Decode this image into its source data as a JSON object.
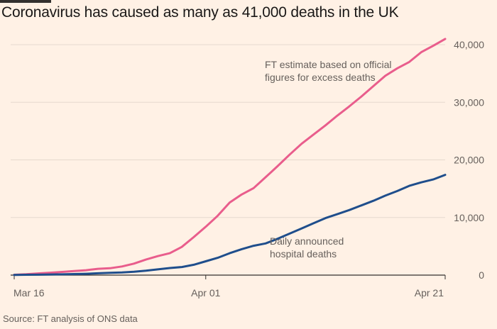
{
  "title": "Coronavirus has caused as many as 41,000 deaths in the UK",
  "source": "Source: FT analysis of ONS data",
  "chart_data": {
    "type": "line",
    "title": "Coronavirus has caused as many as 41,000 deaths in the UK",
    "xlabel": "",
    "ylabel": "",
    "x_ticks": [
      "Mar 16",
      "Apr 01",
      "Apr 21"
    ],
    "y_ticks": [
      "0",
      "10,000",
      "20,000",
      "30,000",
      "40,000"
    ],
    "ylim": [
      0,
      42000
    ],
    "grid": true,
    "legend": "none (direct labels)",
    "x": [
      "Mar 16",
      "Mar 17",
      "Mar 18",
      "Mar 19",
      "Mar 20",
      "Mar 21",
      "Mar 22",
      "Mar 23",
      "Mar 24",
      "Mar 25",
      "Mar 26",
      "Mar 27",
      "Mar 28",
      "Mar 29",
      "Mar 30",
      "Mar 31",
      "Apr 01",
      "Apr 02",
      "Apr 03",
      "Apr 04",
      "Apr 05",
      "Apr 06",
      "Apr 07",
      "Apr 08",
      "Apr 09",
      "Apr 10",
      "Apr 11",
      "Apr 12",
      "Apr 13",
      "Apr 14",
      "Apr 15",
      "Apr 16",
      "Apr 17",
      "Apr 18",
      "Apr 19",
      "Apr 20",
      "Apr 21"
    ],
    "series": [
      {
        "name": "FT estimate based on official figures for excess deaths",
        "color": "#e95d8c",
        "values": [
          60,
          150,
          300,
          420,
          550,
          700,
          850,
          1100,
          1200,
          1500,
          2000,
          2700,
          3300,
          3800,
          4900,
          6600,
          8400,
          10300,
          12600,
          14000,
          15100,
          17000,
          18900,
          20900,
          22800,
          24400,
          26000,
          27700,
          29300,
          31000,
          32800,
          34600,
          35900,
          37000,
          38700,
          39800,
          41000
        ]
      },
      {
        "name": "Daily announced hospital deaths",
        "color": "#1f4e8c",
        "values": [
          40,
          60,
          80,
          110,
          140,
          180,
          230,
          320,
          400,
          460,
          580,
          760,
          1000,
          1230,
          1400,
          1800,
          2400,
          3000,
          3800,
          4500,
          5100,
          5500,
          6300,
          7200,
          8100,
          9000,
          9900,
          10600,
          11300,
          12100,
          12900,
          13800,
          14600,
          15500,
          16100,
          16600,
          17400
        ]
      }
    ],
    "annotations": [
      {
        "lines": [
          "FT estimate based on official",
          "figures for excess deaths"
        ]
      },
      {
        "lines": [
          "Daily announced",
          "hospital deaths"
        ]
      }
    ]
  }
}
